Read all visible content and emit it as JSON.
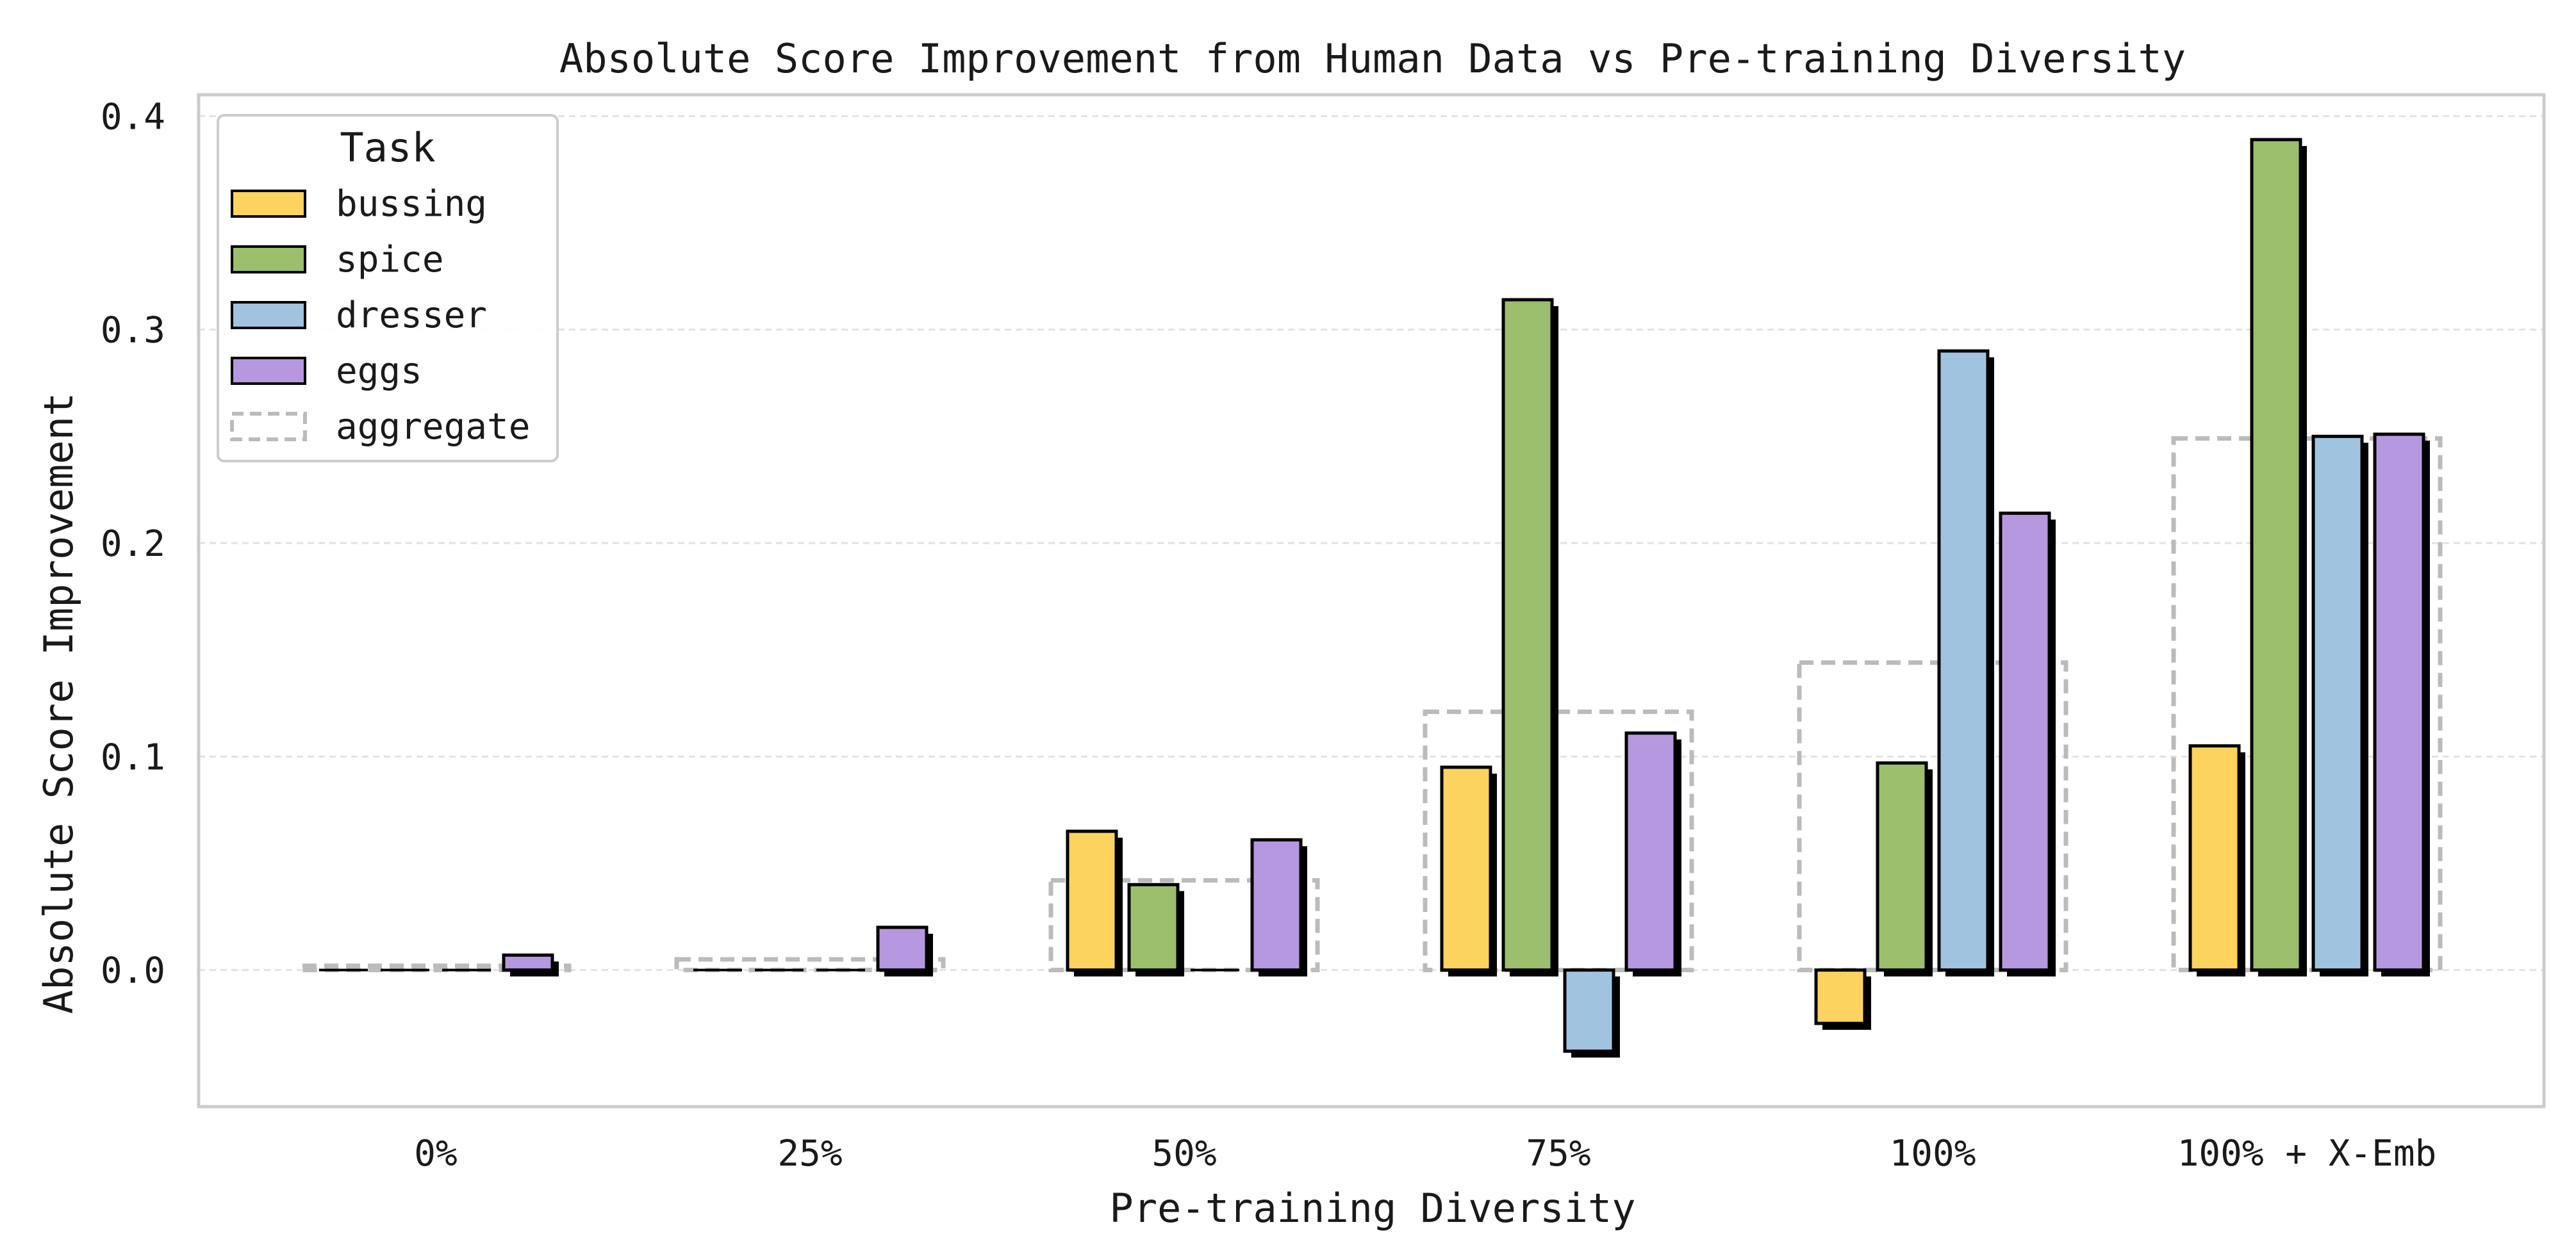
{
  "chart_data": {
    "type": "bar",
    "title": "Absolute Score Improvement from Human Data vs Pre-training Diversity",
    "xlabel": "Pre-training Diversity",
    "ylabel": "Absolute Score Improvement",
    "categories": [
      "0%",
      "25%",
      "50%",
      "75%",
      "100%",
      "100% + X-Emb"
    ],
    "ylim": [
      -0.064,
      0.41
    ],
    "yticks": [
      0.0,
      0.1,
      0.2,
      0.3,
      0.4
    ],
    "ytick_labels": [
      "0.0",
      "0.1",
      "0.2",
      "0.3",
      "0.4"
    ],
    "grid": true,
    "legend": {
      "title": "Task",
      "placement": "top-left"
    },
    "series": [
      {
        "name": "bussing",
        "color": "#FCD35F",
        "values": [
          0.0,
          0.0,
          0.065,
          0.095,
          -0.025,
          0.105
        ]
      },
      {
        "name": "spice",
        "color": "#9BBF6C",
        "values": [
          0.0,
          0.0,
          0.04,
          0.314,
          0.097,
          0.389
        ]
      },
      {
        "name": "dresser",
        "color": "#A0C4E0",
        "values": [
          0.0,
          0.0,
          0.0,
          -0.038,
          0.29,
          0.25
        ]
      },
      {
        "name": "eggs",
        "color": "#B698E0",
        "values": [
          0.007,
          0.02,
          0.061,
          0.111,
          0.214,
          0.251
        ]
      }
    ],
    "aggregate": {
      "name": "aggregate",
      "color": "#BBBBBB",
      "values": [
        0.002,
        0.005,
        0.042,
        0.121,
        0.144,
        0.249
      ]
    }
  }
}
